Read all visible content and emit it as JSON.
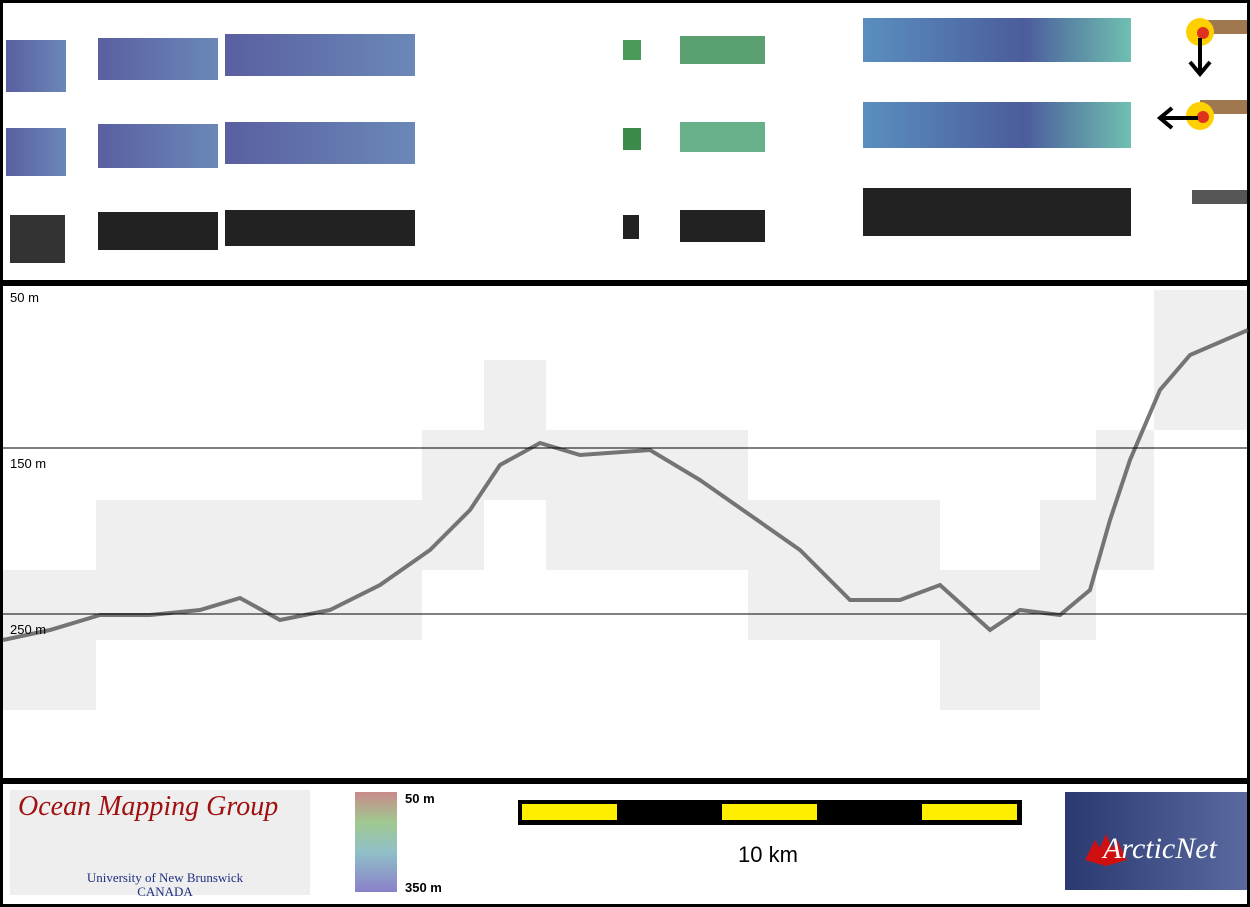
{
  "profile": {
    "depth_labels": [
      "50 m",
      "150 m",
      "250 m"
    ]
  },
  "footer": {
    "logo_title": "Ocean Mapping Group",
    "logo_university": "University of New Brunswick",
    "logo_country": "CANADA",
    "colorbar_top": "50 m",
    "colorbar_bottom": "350 m",
    "scale_label": "10 km",
    "partner_logo": "ArcticNet"
  }
}
